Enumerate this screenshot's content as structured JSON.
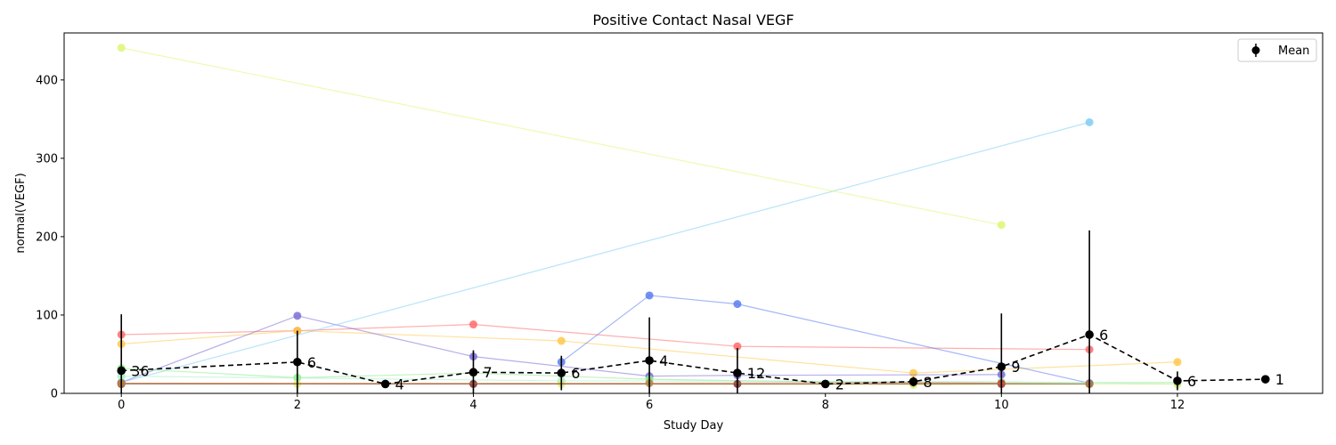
{
  "chart_data": {
    "type": "line",
    "title": "Positive Contact Nasal VEGF",
    "xlabel": "Study Day",
    "ylabel": "normal(VEGF)",
    "xlim": [
      -0.65,
      13.65
    ],
    "ylim": [
      0,
      460
    ],
    "xticks": [
      0,
      2,
      4,
      6,
      8,
      10,
      12
    ],
    "yticks": [
      0,
      100,
      200,
      300,
      400
    ],
    "legend": {
      "label": "Mean",
      "position": "top-right"
    },
    "mean_series": {
      "name": "Mean",
      "color": "#000000",
      "points": [
        {
          "x": 0,
          "y": 29,
          "err": 72,
          "n": "36"
        },
        {
          "x": 2,
          "y": 40,
          "err": 40,
          "n": "6"
        },
        {
          "x": 3,
          "y": 12,
          "err": 0,
          "n": "4"
        },
        {
          "x": 4,
          "y": 27,
          "err": 28,
          "n": "7"
        },
        {
          "x": 5,
          "y": 26,
          "err": 22,
          "n": "6"
        },
        {
          "x": 6,
          "y": 42,
          "err": 55,
          "n": "4"
        },
        {
          "x": 7,
          "y": 26,
          "err": 32,
          "n": "12"
        },
        {
          "x": 8,
          "y": 12,
          "err": 0,
          "n": "2"
        },
        {
          "x": 9,
          "y": 15,
          "err": 6,
          "n": "8"
        },
        {
          "x": 10,
          "y": 34,
          "err": 68,
          "n": "9"
        },
        {
          "x": 11,
          "y": 75,
          "err": 133,
          "n": "6"
        },
        {
          "x": 12,
          "y": 16,
          "err": 12,
          "n": "6"
        },
        {
          "x": 13,
          "y": 18,
          "err": 0,
          "n": "1"
        }
      ]
    },
    "series": [
      {
        "color": "#ff6b6b",
        "points": [
          [
            0,
            75
          ],
          [
            2,
            80
          ],
          [
            4,
            88
          ],
          [
            7,
            60
          ],
          [
            11,
            56
          ]
        ]
      },
      {
        "color": "#ffc84a",
        "points": [
          [
            0,
            63
          ],
          [
            2,
            80
          ],
          [
            5,
            67
          ],
          [
            9,
            26
          ],
          [
            12,
            40
          ]
        ]
      },
      {
        "color": "#7a6ed8",
        "points": [
          [
            0,
            14
          ],
          [
            2,
            99
          ],
          [
            4,
            47
          ],
          [
            6,
            22
          ],
          [
            7,
            23
          ],
          [
            10,
            24
          ]
        ]
      },
      {
        "color": "#5a7cf0",
        "points": [
          [
            5,
            40
          ],
          [
            6,
            125
          ],
          [
            7,
            114
          ],
          [
            11,
            13
          ]
        ]
      },
      {
        "color": "#7ecdf5",
        "points": [
          [
            0,
            14
          ],
          [
            11,
            346
          ]
        ]
      },
      {
        "color": "#dcf774",
        "points": [
          [
            0,
            441
          ],
          [
            10,
            215
          ]
        ]
      },
      {
        "color": "#8aeb8a",
        "points": [
          [
            0,
            32
          ],
          [
            2,
            20
          ],
          [
            4,
            26
          ],
          [
            6,
            18
          ],
          [
            9,
            13
          ],
          [
            12,
            14
          ]
        ]
      },
      {
        "color": "#a8f0c8",
        "points": [
          [
            0,
            22
          ],
          [
            5,
            16
          ],
          [
            10,
            15
          ],
          [
            12,
            12
          ]
        ]
      },
      {
        "color": "#d7f07d",
        "points": [
          [
            0,
            12
          ],
          [
            2,
            12
          ],
          [
            5,
            12
          ],
          [
            9,
            11
          ],
          [
            12,
            12
          ]
        ]
      },
      {
        "color": "#7a2d2d",
        "points": [
          [
            0,
            12
          ],
          [
            4,
            12
          ],
          [
            7,
            12
          ],
          [
            10,
            12
          ],
          [
            11,
            12
          ]
        ]
      },
      {
        "color": "#c8503c",
        "points": [
          [
            0,
            13
          ],
          [
            3,
            12
          ],
          [
            8,
            12
          ],
          [
            10,
            13
          ]
        ]
      },
      {
        "color": "#b48246",
        "points": [
          [
            0,
            13
          ],
          [
            6,
            13
          ],
          [
            9,
            14
          ],
          [
            11,
            12
          ]
        ]
      }
    ]
  }
}
